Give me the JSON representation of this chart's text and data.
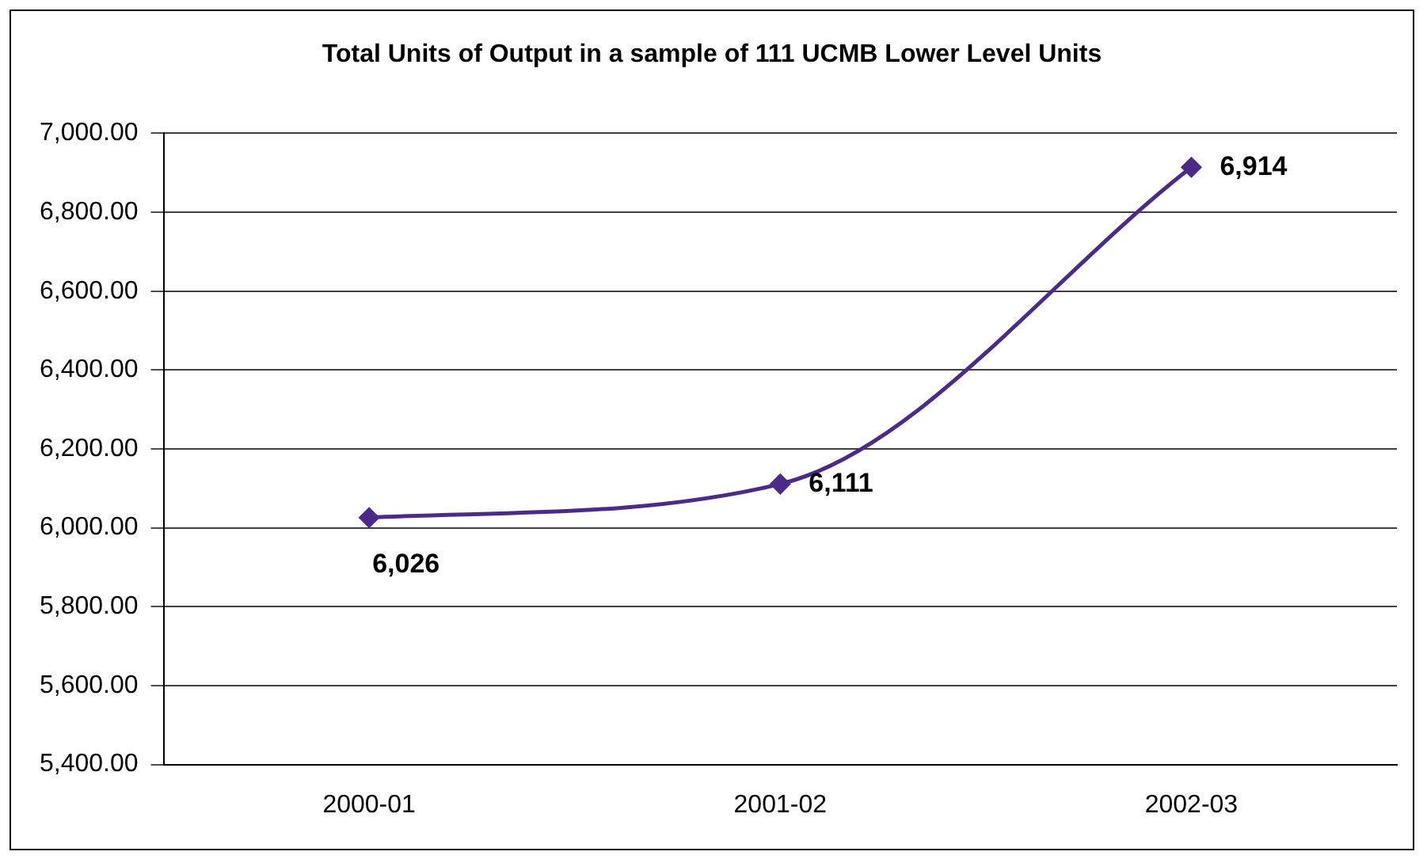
{
  "chart_data": {
    "type": "line",
    "title": "Total Units of Output in a sample of 111 UCMB Lower Level Units",
    "categories": [
      "2000-01",
      "2001-02",
      "2002-03"
    ],
    "series": [
      {
        "color": "#4b2a8a",
        "values": [
          6026,
          6111,
          6914
        ],
        "value_labels": [
          "6,026",
          "6,111",
          "6,914"
        ]
      }
    ],
    "ylim": [
      5400,
      7000
    ],
    "yticks": [
      {
        "value": 5400,
        "label": "5,400.00"
      },
      {
        "value": 5600,
        "label": "5,600.00"
      },
      {
        "value": 5800,
        "label": "5,800.00"
      },
      {
        "value": 6000,
        "label": "6,000.00"
      },
      {
        "value": 6200,
        "label": "6,200.00"
      },
      {
        "value": 6400,
        "label": "6,400.00"
      },
      {
        "value": 6600,
        "label": "6,600.00"
      },
      {
        "value": 6800,
        "label": "6,800.00"
      },
      {
        "value": 7000,
        "label": "7,000.00"
      }
    ],
    "grid": "y",
    "legend": false,
    "marker": "diamond",
    "line_style": "solid"
  }
}
